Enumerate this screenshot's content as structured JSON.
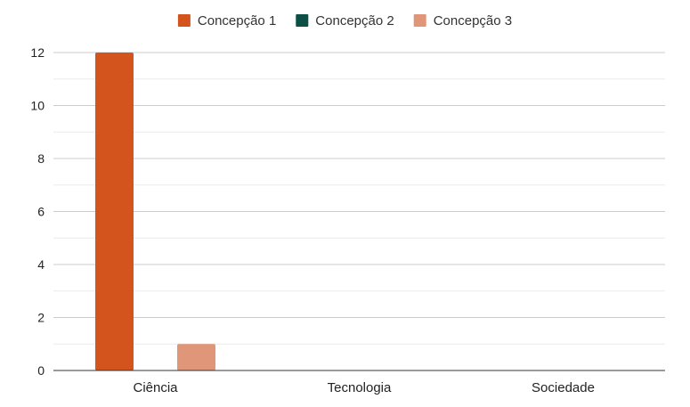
{
  "chart_data": {
    "type": "bar",
    "title": "",
    "xlabel": "",
    "ylabel": "",
    "categories": [
      "Ciência",
      "Tecnologia",
      "Sociedade"
    ],
    "series": [
      {
        "name": "Concepção 1",
        "color": "#d4541e",
        "values": [
          12,
          0,
          0
        ]
      },
      {
        "name": "Concepção 2",
        "color": "#0c4f46",
        "values": [
          0,
          0,
          0
        ]
      },
      {
        "name": "Concepção 3",
        "color": "#e09678",
        "values": [
          1,
          0,
          0
        ]
      }
    ],
    "ylim": [
      0,
      12
    ],
    "yticks": [
      0,
      2,
      4,
      6,
      8,
      10,
      12
    ],
    "grid": true,
    "minor_grid": true,
    "legend_position": "top-center"
  }
}
